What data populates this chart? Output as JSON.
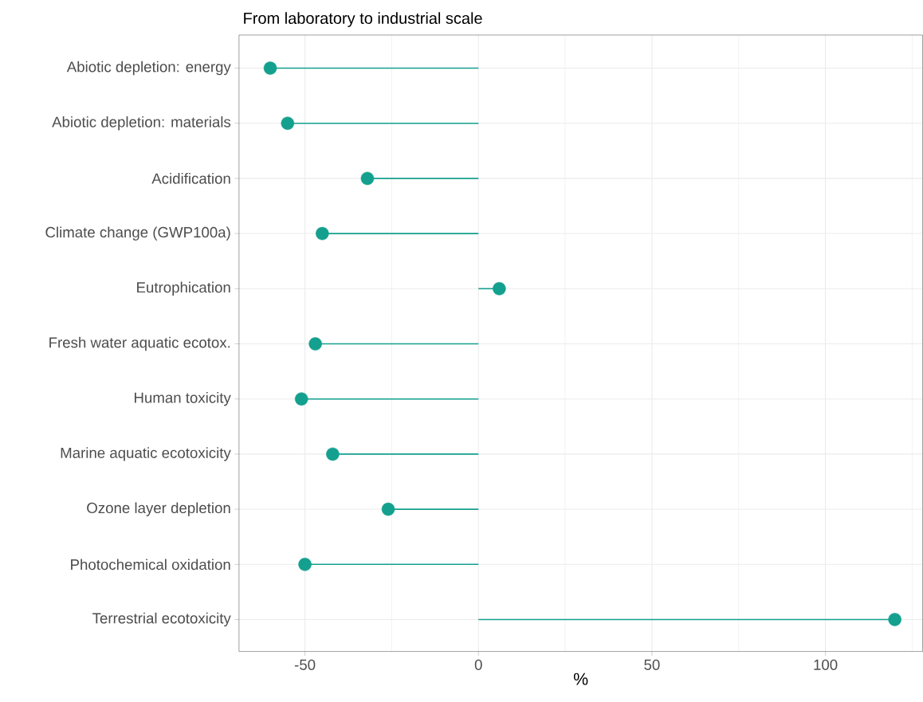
{
  "chart_data": {
    "type": "lollipop",
    "orientation": "horizontal",
    "title": "From laboratory to industrial scale",
    "xlabel": "%",
    "categories": [
      "Abiotic depletion: energy",
      "Abiotic depletion: materials",
      "Acidification",
      "Climate change (GWP100a)",
      "Eutrophication",
      "Fresh water aquatic ecotox.",
      "Human toxicity",
      "Marine aquatic ecotoxicity",
      "Ozone layer depletion",
      "Photochemical oxidation",
      "Terrestrial ecotoxicity"
    ],
    "values": [
      -60,
      -55,
      -32,
      -45,
      6,
      -47,
      -51,
      -42,
      -26,
      -50,
      120
    ],
    "color": "#14a08e",
    "xlim": [
      -69,
      128
    ],
    "xticks": [
      -50,
      0,
      50,
      100,
      {
        "value": -25,
        "label": null
      },
      {
        "value": 25,
        "label": null
      },
      {
        "value": 75,
        "label": null
      },
      {
        "value": 125,
        "label": null
      }
    ],
    "grid": true,
    "marker": "circle"
  }
}
